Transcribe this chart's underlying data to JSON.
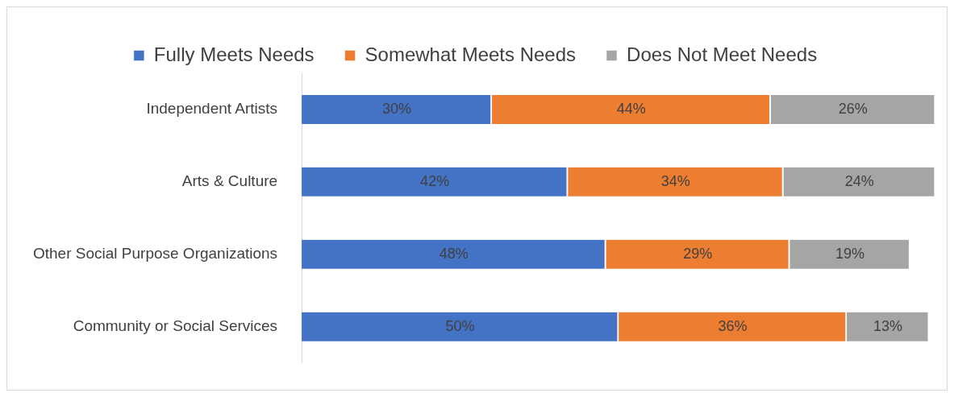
{
  "chart_data": {
    "type": "bar",
    "orientation": "horizontal",
    "stacked": true,
    "legend": "top",
    "grid": false,
    "categories": [
      "Independent Artists",
      "Arts & Culture",
      "Other Social Purpose Organizations",
      "Community or Social Services"
    ],
    "series": [
      {
        "name": "Fully Meets Needs",
        "color": "#4472c4",
        "values": [
          30,
          42,
          48,
          50
        ],
        "value_labels": [
          "30%",
          "42%",
          "48%",
          "50%"
        ]
      },
      {
        "name": "Somewhat Meets Needs",
        "color": "#ed7d31",
        "values": [
          44,
          34,
          29,
          36
        ],
        "value_labels": [
          "44%",
          "34%",
          "29%",
          "36%"
        ]
      },
      {
        "name": "Does Not Meet Needs",
        "color": "#a5a5a5",
        "values": [
          26,
          24,
          19,
          13
        ],
        "value_labels": [
          "26%",
          "24%",
          "19%",
          "13%"
        ]
      }
    ]
  }
}
